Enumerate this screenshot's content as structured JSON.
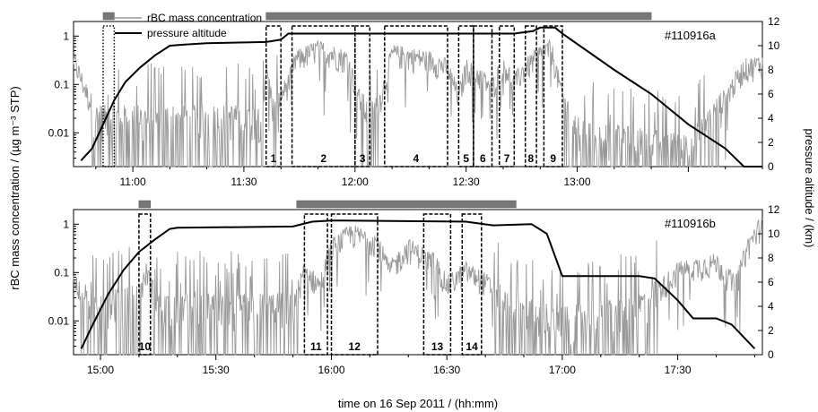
{
  "figure": {
    "left_ylabel": "rBC mass concentration / (µg m⁻³ STP)",
    "right_ylabel": "pressure altitude / (km)",
    "xlabel": "time on 16 Sep 2011 / (hh:mm)"
  },
  "legend": {
    "items": [
      {
        "label": "rBC mass concentration",
        "color": "#999999"
      },
      {
        "label": "pressure altitude",
        "color": "#000000"
      }
    ]
  },
  "chart_data": [
    {
      "type": "line",
      "id": "#110916a",
      "left_axis": {
        "scale": "log",
        "ylim": [
          0.002,
          2
        ],
        "ticks": [
          0.01,
          0.1,
          1
        ],
        "tick_labels": [
          "0.01",
          "0.1",
          "1"
        ]
      },
      "right_axis": {
        "ylim": [
          0,
          12
        ],
        "ticks": [
          0,
          2,
          4,
          6,
          8,
          10,
          12
        ],
        "tick_labels": [
          "0",
          "2",
          "4",
          "6",
          "8",
          "10",
          "12"
        ]
      },
      "x_range": [
        "10:44",
        "13:50"
      ],
      "x_ticks": [
        "11:00",
        "11:30",
        "12:00",
        "12:30",
        "13:00"
      ],
      "series": [
        {
          "name": "pressure altitude",
          "unit": "km",
          "points": [
            [
              "10:46",
              0.5
            ],
            [
              "10:49",
              1.5
            ],
            [
              "10:52",
              3.5
            ],
            [
              "10:55",
              5.5
            ],
            [
              "10:58",
              7.0
            ],
            [
              "11:02",
              8.2
            ],
            [
              "11:06",
              9.2
            ],
            [
              "11:10",
              10.0
            ],
            [
              "11:14",
              10.1
            ],
            [
              "11:20",
              10.2
            ],
            [
              "11:36",
              10.3
            ],
            [
              "11:40",
              10.5
            ],
            [
              "11:42",
              11.0
            ],
            [
              "12:00",
              11.0
            ],
            [
              "12:30",
              11.0
            ],
            [
              "12:43",
              11.0
            ],
            [
              "12:48",
              11.2
            ],
            [
              "12:50",
              11.5
            ],
            [
              "12:54",
              11.5
            ],
            [
              "12:56",
              11.0
            ],
            [
              "13:10",
              8.0
            ],
            [
              "13:20",
              6.0
            ],
            [
              "13:30",
              3.5
            ],
            [
              "13:40",
              1.5
            ],
            [
              "13:45",
              0.0
            ],
            [
              "13:50",
              0.0
            ]
          ]
        },
        {
          "name": "rBC mass concentration",
          "unit": "µg m⁻³ STP",
          "levels": [
            [
              "10:44",
              0.3
            ],
            [
              "10:50",
              0.02
            ],
            [
              "11:35",
              0.02
            ],
            [
              "11:36",
              0.2
            ],
            [
              "11:38",
              0.03
            ],
            [
              "11:42",
              0.1
            ],
            [
              "11:44",
              0.3
            ],
            [
              "11:50",
              0.5
            ],
            [
              "11:58",
              0.3
            ],
            [
              "12:01",
              0.05
            ],
            [
              "12:04",
              0.02
            ],
            [
              "12:07",
              0.05
            ],
            [
              "12:10",
              0.4
            ],
            [
              "12:20",
              0.3
            ],
            [
              "12:25",
              0.2
            ],
            [
              "12:28",
              0.05
            ],
            [
              "12:30",
              0.2
            ],
            [
              "12:33",
              0.15
            ],
            [
              "12:37",
              0.08
            ],
            [
              "12:40",
              0.25
            ],
            [
              "12:43",
              0.1
            ],
            [
              "12:46",
              0.2
            ],
            [
              "12:50",
              0.4
            ],
            [
              "12:53",
              0.5
            ],
            [
              "12:56",
              0.05
            ],
            [
              "13:00",
              0.01
            ],
            [
              "13:30",
              0.005
            ],
            [
              "13:40",
              0.05
            ],
            [
              "13:45",
              0.2
            ],
            [
              "13:50",
              0.25
            ]
          ]
        }
      ],
      "top_bars": [
        {
          "start": "10:52",
          "end": "10:55"
        },
        {
          "start": "11:36",
          "end": "13:20"
        }
      ],
      "periods": [
        {
          "label": "",
          "start": "10:52",
          "end": "10:55",
          "style": "dotted"
        },
        {
          "label": "1",
          "start": "11:36",
          "end": "11:40"
        },
        {
          "label": "2",
          "start": "11:43",
          "end": "12:00"
        },
        {
          "label": "3",
          "start": "12:00",
          "end": "12:04"
        },
        {
          "label": "4",
          "start": "12:08",
          "end": "12:25"
        },
        {
          "label": "5",
          "start": "12:28",
          "end": "12:32"
        },
        {
          "label": "6",
          "start": "12:32",
          "end": "12:37"
        },
        {
          "label": "7",
          "start": "12:39",
          "end": "12:43"
        },
        {
          "label": "8",
          "start": "12:46",
          "end": "12:49"
        },
        {
          "label": "9",
          "start": "12:51",
          "end": "12:56"
        }
      ]
    },
    {
      "type": "line",
      "id": "#110916b",
      "left_axis": {
        "scale": "log",
        "ylim": [
          0.002,
          2
        ],
        "ticks": [
          0.01,
          0.1,
          1
        ],
        "tick_labels": [
          "0.01",
          "0.1",
          "1"
        ]
      },
      "right_axis": {
        "ylim": [
          0,
          12
        ],
        "ticks": [
          0,
          2,
          4,
          6,
          8,
          10,
          12
        ],
        "tick_labels": [
          "0",
          "2",
          "4",
          "6",
          "8",
          "10",
          "12"
        ]
      },
      "x_range": [
        "14:53",
        "17:52"
      ],
      "x_ticks": [
        "15:00",
        "15:30",
        "16:00",
        "16:30",
        "17:00",
        "17:30"
      ],
      "series": [
        {
          "name": "pressure altitude",
          "unit": "km",
          "points": [
            [
              "14:55",
              0.5
            ],
            [
              "14:58",
              2.5
            ],
            [
              "15:02",
              5.0
            ],
            [
              "15:06",
              7.0
            ],
            [
              "15:10",
              8.5
            ],
            [
              "15:14",
              9.5
            ],
            [
              "15:18",
              10.4
            ],
            [
              "15:20",
              10.5
            ],
            [
              "15:50",
              10.6
            ],
            [
              "15:55",
              11.0
            ],
            [
              "16:00",
              11.1
            ],
            [
              "16:35",
              11.0
            ],
            [
              "16:42",
              10.7
            ],
            [
              "16:52",
              10.8
            ],
            [
              "16:56",
              10.0
            ],
            [
              "17:00",
              6.5
            ],
            [
              "17:20",
              6.5
            ],
            [
              "17:24",
              6.3
            ],
            [
              "17:30",
              4.5
            ],
            [
              "17:34",
              3.0
            ],
            [
              "17:40",
              3.0
            ],
            [
              "17:44",
              2.5
            ],
            [
              "17:50",
              0.5
            ]
          ]
        },
        {
          "name": "rBC mass concentration",
          "unit": "µg m⁻³ STP",
          "levels": [
            [
              "14:53",
              0.06
            ],
            [
              "14:58",
              0.02
            ],
            [
              "15:10",
              0.03
            ],
            [
              "15:12",
              0.1
            ],
            [
              "15:15",
              0.02
            ],
            [
              "15:50",
              0.02
            ],
            [
              "15:53",
              0.1
            ],
            [
              "15:57",
              0.05
            ],
            [
              "16:00",
              0.3
            ],
            [
              "16:05",
              0.6
            ],
            [
              "16:12",
              0.4
            ],
            [
              "16:15",
              0.1
            ],
            [
              "16:20",
              0.3
            ],
            [
              "16:27",
              0.15
            ],
            [
              "16:30",
              0.05
            ],
            [
              "16:35",
              0.1
            ],
            [
              "16:40",
              0.06
            ],
            [
              "16:46",
              0.02
            ],
            [
              "17:00",
              0.01
            ],
            [
              "17:20",
              0.02
            ],
            [
              "17:25",
              0.04
            ],
            [
              "17:30",
              0.1
            ],
            [
              "17:40",
              0.15
            ],
            [
              "17:45",
              0.05
            ],
            [
              "17:48",
              0.3
            ],
            [
              "17:52",
              1.0
            ]
          ]
        }
      ],
      "top_bars": [
        {
          "start": "15:10",
          "end": "15:13"
        },
        {
          "start": "15:51",
          "end": "16:48"
        }
      ],
      "periods": [
        {
          "label": "10",
          "start": "15:10",
          "end": "15:13"
        },
        {
          "label": "11",
          "start": "15:53",
          "end": "15:59"
        },
        {
          "label": "12",
          "start": "16:00",
          "end": "16:12"
        },
        {
          "label": "13",
          "start": "16:24",
          "end": "16:31"
        },
        {
          "label": "14",
          "start": "16:34",
          "end": "16:39"
        }
      ]
    }
  ]
}
